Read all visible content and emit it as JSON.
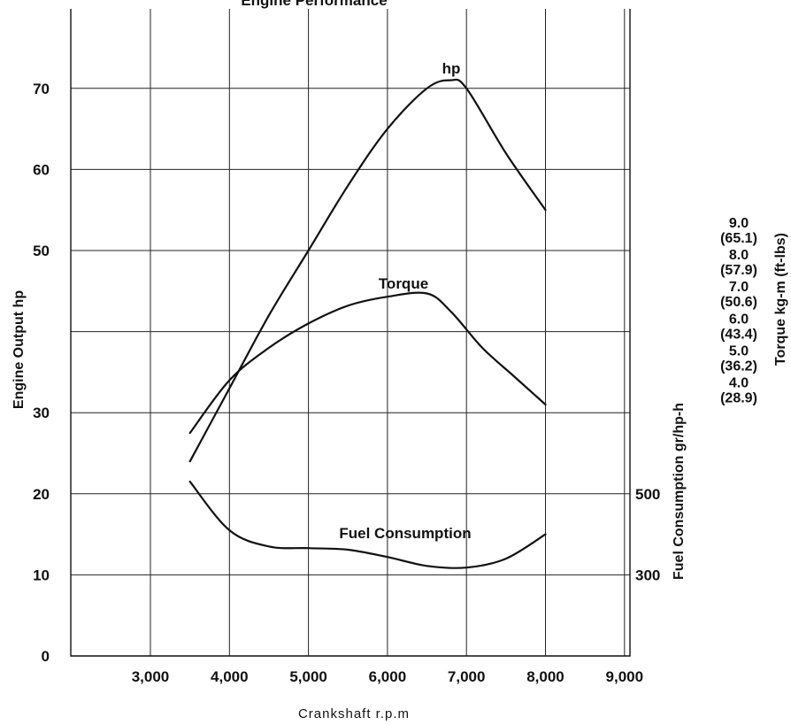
{
  "chart_data": {
    "type": "line",
    "title": "Engine Performance",
    "xlabel": "Crankshaft r.p.m",
    "ylabel": "Engine Output hp",
    "y2label_fuel": "Fuel Consumption gr/hp-h",
    "y3label_torque": "Torque kg-m (ft-lbs)",
    "xlim": [
      2000,
      9000
    ],
    "ylim": [
      0,
      80
    ],
    "x_ticks": [
      3000,
      4000,
      5000,
      6000,
      7000,
      8000,
      9000
    ],
    "x_tick_labels": [
      "3,000",
      "4,000",
      "5,000",
      "6,000",
      "7,000",
      "8,000",
      "9,000"
    ],
    "y_ticks": [
      0,
      10,
      20,
      30,
      50,
      60,
      70
    ],
    "y_tick_labels": [
      "0",
      "10",
      "20",
      "30",
      "50",
      "60",
      "70"
    ],
    "fuel_ticks": [
      {
        "label": "500",
        "at_hp": 20
      },
      {
        "label": "300",
        "at_hp": 10
      }
    ],
    "torque_ticks": [
      {
        "kgm": "9.0",
        "ftlbs": "(65.1)"
      },
      {
        "kgm": "8.0",
        "ftlbs": "(57.9)"
      },
      {
        "kgm": "7.0",
        "ftlbs": "(50.6)"
      },
      {
        "kgm": "6.0",
        "ftlbs": "(43.4)"
      },
      {
        "kgm": "5.0",
        "ftlbs": "(36.2)"
      },
      {
        "kgm": "4.0",
        "ftlbs": "(28.9)"
      }
    ],
    "grid": true,
    "series": [
      {
        "name": "hp",
        "x": [
          3500,
          4000,
          4500,
          5000,
          5500,
          6000,
          6500,
          6800,
          7000,
          7500,
          8000
        ],
        "y": [
          24,
          33,
          42,
          50,
          58,
          65,
          70,
          71,
          70,
          62,
          55
        ]
      },
      {
        "name": "Torque",
        "x": [
          3500,
          4000,
          4500,
          5000,
          5500,
          6000,
          6500,
          6800,
          7200,
          7600,
          8000
        ],
        "y": [
          27.5,
          34,
          38,
          41,
          43.2,
          44.3,
          44.7,
          42.5,
          38,
          34.5,
          31
        ]
      },
      {
        "name": "Fuel Consumption",
        "x": [
          3500,
          4000,
          4500,
          5000,
          5500,
          6000,
          6500,
          7000,
          7500,
          8000
        ],
        "y": [
          21.5,
          15.5,
          13.5,
          13.3,
          13.1,
          12.2,
          11.1,
          10.9,
          12,
          15
        ]
      }
    ]
  }
}
